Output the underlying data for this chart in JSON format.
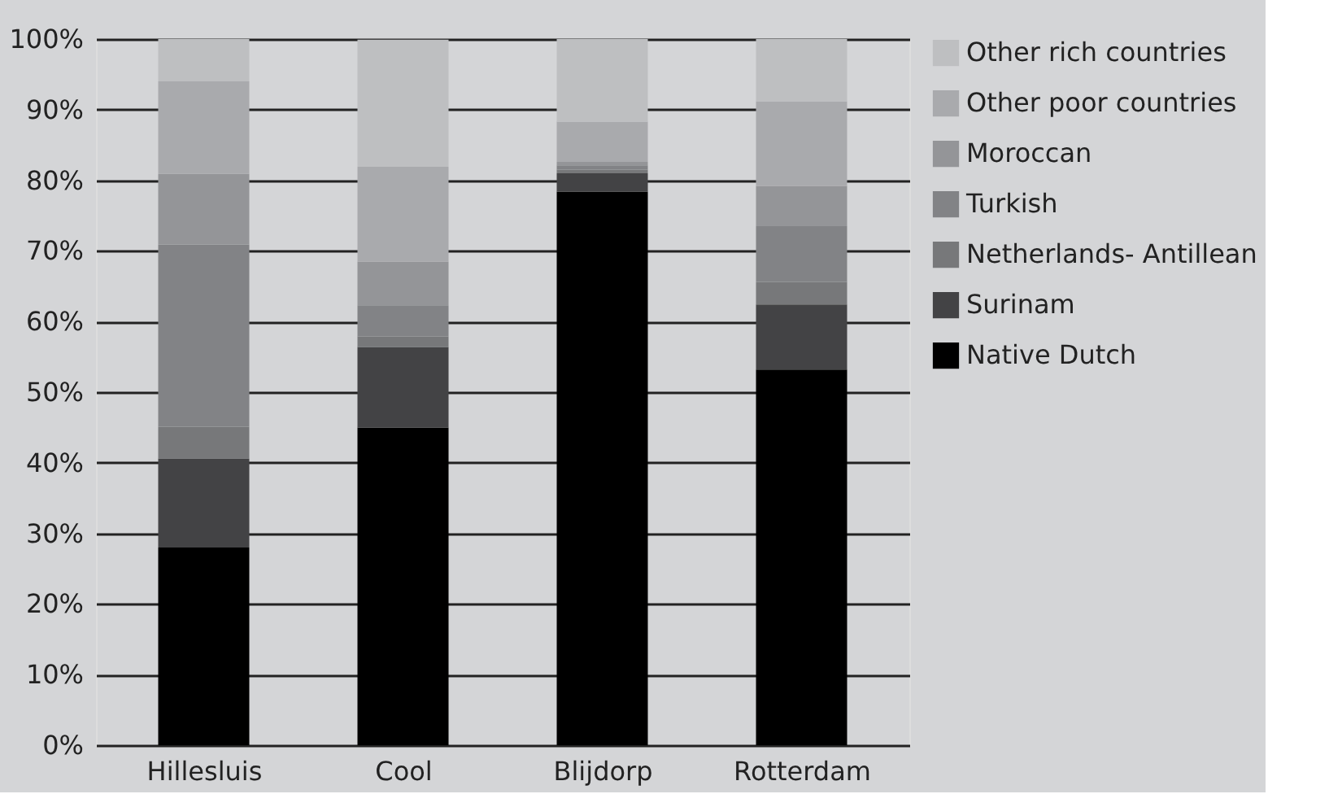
{
  "chart_data": {
    "type": "bar",
    "stacked": true,
    "categories": [
      "Hillesluis",
      "Cool",
      "Blijdorp",
      "Rotterdam"
    ],
    "series": [
      {
        "name": "Native Dutch",
        "color": "#000000",
        "values": [
          28,
          45,
          78.4,
          53.2
        ]
      },
      {
        "name": "Surinam",
        "color": "#434345",
        "values": [
          12.6,
          11.4,
          2.6,
          9.2
        ]
      },
      {
        "name": "Netherlands- Antillean",
        "color": "#77787a",
        "values": [
          4.5,
          1.5,
          0.5,
          3.2
        ]
      },
      {
        "name": "Turkish",
        "color": "#828386",
        "values": [
          25.8,
          4.4,
          0.6,
          7.9
        ]
      },
      {
        "name": "Moroccan",
        "color": "#949598",
        "values": [
          10,
          6.2,
          0.5,
          5.7
        ]
      },
      {
        "name": "Other poor countries",
        "color": "#a9aaad",
        "values": [
          13.1,
          13.4,
          5.7,
          12
        ]
      },
      {
        "name": "Other rich countries",
        "color": "#bebfc1",
        "values": [
          6,
          18,
          11.7,
          8.8
        ]
      }
    ],
    "ylim": [
      0,
      100
    ],
    "yticks": [
      {
        "value": 0,
        "label": "0%"
      },
      {
        "value": 10,
        "label": "10%"
      },
      {
        "value": 20,
        "label": "20%"
      },
      {
        "value": 30,
        "label": "30%"
      },
      {
        "value": 40,
        "label": "40%"
      },
      {
        "value": 50,
        "label": "50%"
      },
      {
        "value": 60,
        "label": "60%"
      },
      {
        "value": 70,
        "label": "70%"
      },
      {
        "value": 80,
        "label": "80%"
      },
      {
        "value": 90,
        "label": "90%"
      },
      {
        "value": 100,
        "label": "100%"
      }
    ],
    "grid": "y",
    "legend": "right"
  }
}
